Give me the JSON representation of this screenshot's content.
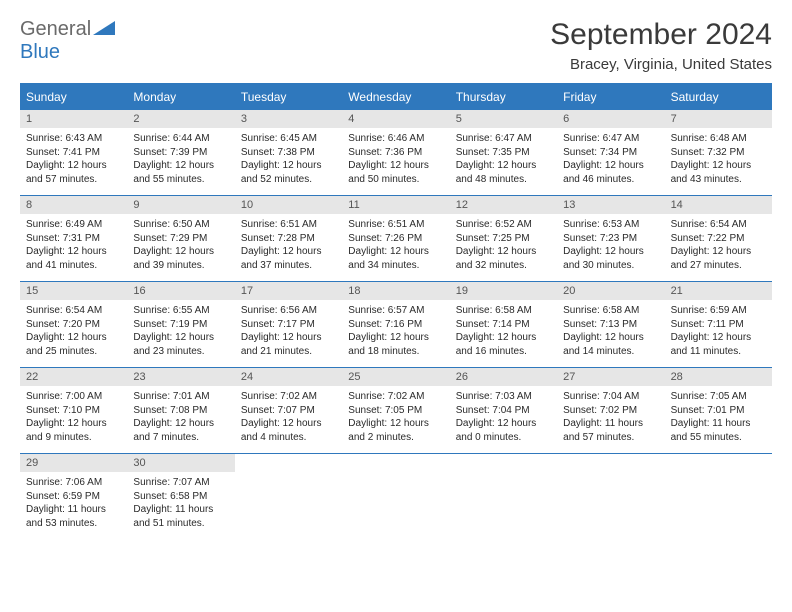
{
  "logo": {
    "general": "General",
    "blue": "Blue"
  },
  "title": "September 2024",
  "location": "Bracey, Virginia, United States",
  "colors": {
    "accent": "#2f78bd",
    "header_bg": "#2f78bd",
    "header_text": "#ffffff",
    "daynum_bg": "#e6e6e6",
    "text": "#2a2a2a",
    "logo_gray": "#6a6a6a"
  },
  "day_headers": [
    "Sunday",
    "Monday",
    "Tuesday",
    "Wednesday",
    "Thursday",
    "Friday",
    "Saturday"
  ],
  "days": [
    {
      "n": "1",
      "sr": "Sunrise: 6:43 AM",
      "ss": "Sunset: 7:41 PM",
      "d1": "Daylight: 12 hours",
      "d2": "and 57 minutes."
    },
    {
      "n": "2",
      "sr": "Sunrise: 6:44 AM",
      "ss": "Sunset: 7:39 PM",
      "d1": "Daylight: 12 hours",
      "d2": "and 55 minutes."
    },
    {
      "n": "3",
      "sr": "Sunrise: 6:45 AM",
      "ss": "Sunset: 7:38 PM",
      "d1": "Daylight: 12 hours",
      "d2": "and 52 minutes."
    },
    {
      "n": "4",
      "sr": "Sunrise: 6:46 AM",
      "ss": "Sunset: 7:36 PM",
      "d1": "Daylight: 12 hours",
      "d2": "and 50 minutes."
    },
    {
      "n": "5",
      "sr": "Sunrise: 6:47 AM",
      "ss": "Sunset: 7:35 PM",
      "d1": "Daylight: 12 hours",
      "d2": "and 48 minutes."
    },
    {
      "n": "6",
      "sr": "Sunrise: 6:47 AM",
      "ss": "Sunset: 7:34 PM",
      "d1": "Daylight: 12 hours",
      "d2": "and 46 minutes."
    },
    {
      "n": "7",
      "sr": "Sunrise: 6:48 AM",
      "ss": "Sunset: 7:32 PM",
      "d1": "Daylight: 12 hours",
      "d2": "and 43 minutes."
    },
    {
      "n": "8",
      "sr": "Sunrise: 6:49 AM",
      "ss": "Sunset: 7:31 PM",
      "d1": "Daylight: 12 hours",
      "d2": "and 41 minutes."
    },
    {
      "n": "9",
      "sr": "Sunrise: 6:50 AM",
      "ss": "Sunset: 7:29 PM",
      "d1": "Daylight: 12 hours",
      "d2": "and 39 minutes."
    },
    {
      "n": "10",
      "sr": "Sunrise: 6:51 AM",
      "ss": "Sunset: 7:28 PM",
      "d1": "Daylight: 12 hours",
      "d2": "and 37 minutes."
    },
    {
      "n": "11",
      "sr": "Sunrise: 6:51 AM",
      "ss": "Sunset: 7:26 PM",
      "d1": "Daylight: 12 hours",
      "d2": "and 34 minutes."
    },
    {
      "n": "12",
      "sr": "Sunrise: 6:52 AM",
      "ss": "Sunset: 7:25 PM",
      "d1": "Daylight: 12 hours",
      "d2": "and 32 minutes."
    },
    {
      "n": "13",
      "sr": "Sunrise: 6:53 AM",
      "ss": "Sunset: 7:23 PM",
      "d1": "Daylight: 12 hours",
      "d2": "and 30 minutes."
    },
    {
      "n": "14",
      "sr": "Sunrise: 6:54 AM",
      "ss": "Sunset: 7:22 PM",
      "d1": "Daylight: 12 hours",
      "d2": "and 27 minutes."
    },
    {
      "n": "15",
      "sr": "Sunrise: 6:54 AM",
      "ss": "Sunset: 7:20 PM",
      "d1": "Daylight: 12 hours",
      "d2": "and 25 minutes."
    },
    {
      "n": "16",
      "sr": "Sunrise: 6:55 AM",
      "ss": "Sunset: 7:19 PM",
      "d1": "Daylight: 12 hours",
      "d2": "and 23 minutes."
    },
    {
      "n": "17",
      "sr": "Sunrise: 6:56 AM",
      "ss": "Sunset: 7:17 PM",
      "d1": "Daylight: 12 hours",
      "d2": "and 21 minutes."
    },
    {
      "n": "18",
      "sr": "Sunrise: 6:57 AM",
      "ss": "Sunset: 7:16 PM",
      "d1": "Daylight: 12 hours",
      "d2": "and 18 minutes."
    },
    {
      "n": "19",
      "sr": "Sunrise: 6:58 AM",
      "ss": "Sunset: 7:14 PM",
      "d1": "Daylight: 12 hours",
      "d2": "and 16 minutes."
    },
    {
      "n": "20",
      "sr": "Sunrise: 6:58 AM",
      "ss": "Sunset: 7:13 PM",
      "d1": "Daylight: 12 hours",
      "d2": "and 14 minutes."
    },
    {
      "n": "21",
      "sr": "Sunrise: 6:59 AM",
      "ss": "Sunset: 7:11 PM",
      "d1": "Daylight: 12 hours",
      "d2": "and 11 minutes."
    },
    {
      "n": "22",
      "sr": "Sunrise: 7:00 AM",
      "ss": "Sunset: 7:10 PM",
      "d1": "Daylight: 12 hours",
      "d2": "and 9 minutes."
    },
    {
      "n": "23",
      "sr": "Sunrise: 7:01 AM",
      "ss": "Sunset: 7:08 PM",
      "d1": "Daylight: 12 hours",
      "d2": "and 7 minutes."
    },
    {
      "n": "24",
      "sr": "Sunrise: 7:02 AM",
      "ss": "Sunset: 7:07 PM",
      "d1": "Daylight: 12 hours",
      "d2": "and 4 minutes."
    },
    {
      "n": "25",
      "sr": "Sunrise: 7:02 AM",
      "ss": "Sunset: 7:05 PM",
      "d1": "Daylight: 12 hours",
      "d2": "and 2 minutes."
    },
    {
      "n": "26",
      "sr": "Sunrise: 7:03 AM",
      "ss": "Sunset: 7:04 PM",
      "d1": "Daylight: 12 hours",
      "d2": "and 0 minutes."
    },
    {
      "n": "27",
      "sr": "Sunrise: 7:04 AM",
      "ss": "Sunset: 7:02 PM",
      "d1": "Daylight: 11 hours",
      "d2": "and 57 minutes."
    },
    {
      "n": "28",
      "sr": "Sunrise: 7:05 AM",
      "ss": "Sunset: 7:01 PM",
      "d1": "Daylight: 11 hours",
      "d2": "and 55 minutes."
    },
    {
      "n": "29",
      "sr": "Sunrise: 7:06 AM",
      "ss": "Sunset: 6:59 PM",
      "d1": "Daylight: 11 hours",
      "d2": "and 53 minutes."
    },
    {
      "n": "30",
      "sr": "Sunrise: 7:07 AM",
      "ss": "Sunset: 6:58 PM",
      "d1": "Daylight: 11 hours",
      "d2": "and 51 minutes."
    }
  ]
}
